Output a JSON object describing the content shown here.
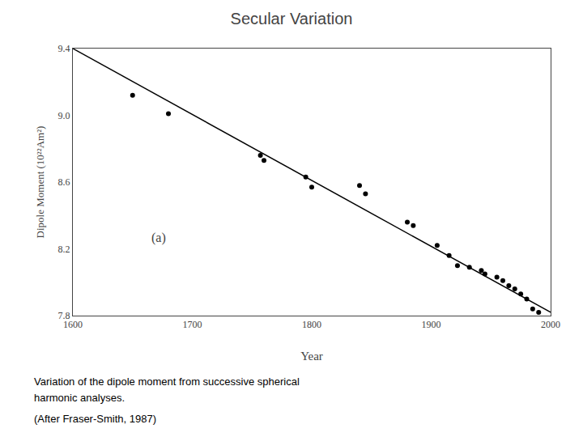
{
  "chart_data": {
    "type": "scatter",
    "title": "Secular Variation",
    "xlabel": "Year",
    "ylabel": "Dipole Moment (10²²Am²)",
    "annotation": "(a)",
    "caption": [
      "Variation of the dipole moment from successive spherical",
      "harmonic analyses.",
      "(After Fraser-Smith, 1987)"
    ],
    "xlim": [
      1600,
      2000
    ],
    "ylim": [
      7.8,
      9.4
    ],
    "xticks": [
      1600,
      1700,
      1800,
      1900,
      2000
    ],
    "yticks": [
      7.8,
      8.2,
      8.6,
      {
        "value": 9.0,
        "label": "9.0"
      },
      9.4
    ],
    "grid": false,
    "series": [
      {
        "type": "line",
        "color": "black",
        "x": [
          1600,
          2000
        ],
        "values": [
          9.4,
          7.82
        ]
      },
      {
        "type": "scatter",
        "color": "black",
        "marker": "circle",
        "x": [
          1650,
          1680,
          1757,
          1760,
          1795,
          1800,
          1840,
          1845,
          1880,
          1885,
          1905,
          1915,
          1922,
          1932,
          1942,
          1945,
          1955,
          1960,
          1965,
          1970,
          1975,
          1980,
          1985,
          1990
        ],
        "values": [
          9.12,
          9.01,
          8.76,
          8.73,
          8.63,
          8.57,
          8.58,
          8.53,
          8.36,
          8.34,
          8.22,
          8.16,
          8.1,
          8.09,
          8.07,
          8.05,
          8.03,
          8.01,
          7.98,
          7.96,
          7.93,
          7.9,
          7.84,
          7.82
        ]
      }
    ]
  }
}
